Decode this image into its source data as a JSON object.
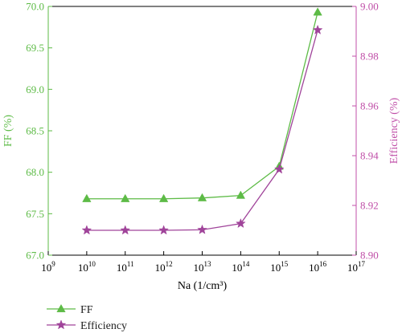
{
  "chart_data": {
    "type": "line",
    "xlabel": "Na (1/cm³)",
    "ylabel_left": "FF (%)",
    "ylabel_right": "Efficiency (%)",
    "x_scale": "log",
    "xlim": [
      1000000000.0,
      1e+17
    ],
    "x_tick_labels": [
      {
        "base": "10",
        "exp": "9"
      },
      {
        "base": "10",
        "exp": "10"
      },
      {
        "base": "10",
        "exp": "11"
      },
      {
        "base": "10",
        "exp": "12"
      },
      {
        "base": "10",
        "exp": "13"
      },
      {
        "base": "10",
        "exp": "14"
      },
      {
        "base": "10",
        "exp": "15"
      },
      {
        "base": "10",
        "exp": "16"
      },
      {
        "base": "10",
        "exp": "17"
      }
    ],
    "ylim_left": [
      67.0,
      70.0
    ],
    "yticks_left": [
      "67.0",
      "67.5",
      "68.0",
      "68.5",
      "69.0",
      "69.5",
      "70.0"
    ],
    "ylim_right": [
      8.9,
      9.0
    ],
    "yticks_right": [
      "8.90",
      "8.92",
      "8.94",
      "8.96",
      "8.98",
      "9.00"
    ],
    "x": [
      10000000000.0,
      100000000000.0,
      1000000000000.0,
      10000000000000.0,
      100000000000000.0,
      1000000000000000.0,
      1e+16
    ],
    "series": [
      {
        "name": "FF",
        "axis": "left",
        "marker": "triangle",
        "color": "#5dbb46",
        "values": [
          67.68,
          67.68,
          67.68,
          67.69,
          67.72,
          68.07,
          69.93
        ]
      },
      {
        "name": "Efficiency",
        "axis": "right",
        "marker": "star",
        "color": "#a0449a",
        "values": [
          8.91,
          8.91,
          8.91,
          8.9102,
          8.9127,
          8.9345,
          8.9905
        ]
      }
    ],
    "grid": false,
    "legend": "bottom-left"
  },
  "colors": {
    "left_axis": "#5dbb46",
    "right_axis": "#c04fa8",
    "axis": "#000000"
  }
}
